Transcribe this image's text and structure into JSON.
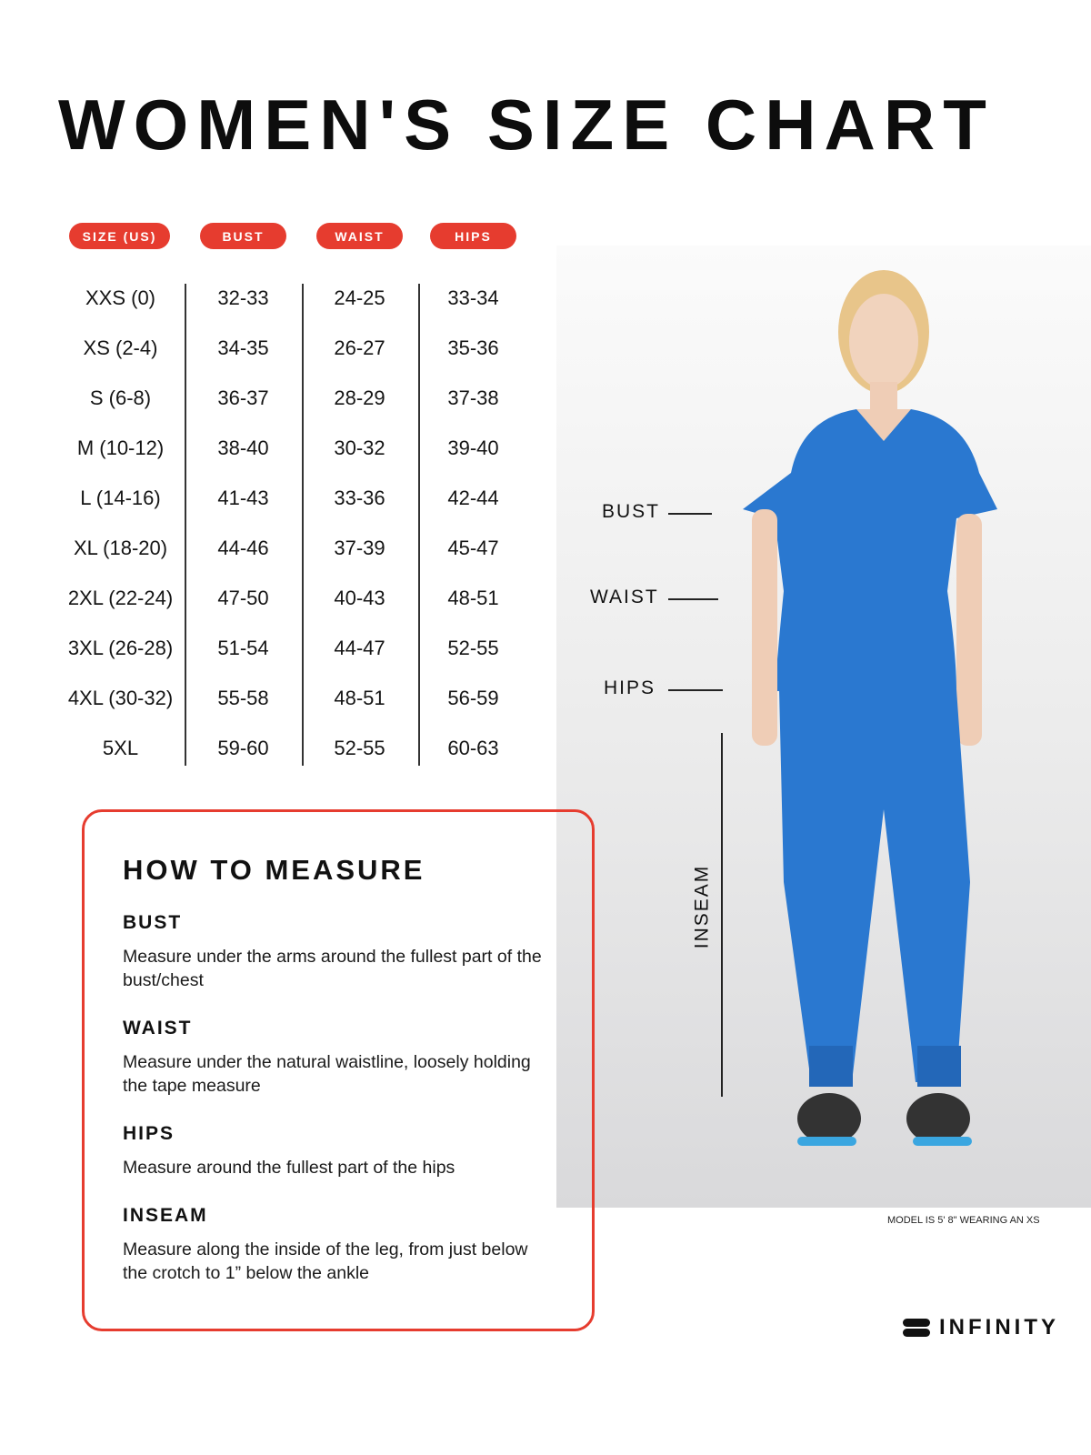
{
  "title": "WOMEN'S SIZE CHART",
  "table": {
    "headers": [
      "SIZE (US)",
      "BUST",
      "WAIST",
      "HIPS"
    ],
    "sizes": [
      "XXS (0)",
      "XS (2-4)",
      "S (6-8)",
      "M (10-12)",
      "L (14-16)",
      "XL (18-20)",
      "2XL (22-24)",
      "3XL (26-28)",
      "4XL (30-32)",
      "5XL"
    ],
    "bust": [
      "32-33",
      "34-35",
      "36-37",
      "38-40",
      "41-43",
      "44-46",
      "47-50",
      "51-54",
      "55-58",
      "59-60"
    ],
    "waist": [
      "24-25",
      "26-27",
      "28-29",
      "30-32",
      "33-36",
      "37-39",
      "40-43",
      "44-47",
      "48-51",
      "52-55"
    ],
    "hips": [
      "33-34",
      "35-36",
      "37-38",
      "39-40",
      "42-44",
      "45-47",
      "48-51",
      "52-55",
      "56-59",
      "60-63"
    ]
  },
  "figure_labels": {
    "bust": "BUST",
    "waist": "WAIST",
    "hips": "HIPS",
    "inseam": "INSEAM"
  },
  "how_to": {
    "title": "HOW TO MEASURE",
    "sections": [
      {
        "heading": "BUST",
        "text": "Measure under the arms around the fullest part of the bust/chest"
      },
      {
        "heading": "WAIST",
        "text": "Measure under the natural waistline, loosely holding the tape measure"
      },
      {
        "heading": "HIPS",
        "text": "Measure around the fullest part of the hips"
      },
      {
        "heading": "INSEAM",
        "text": "Measure along the inside of the leg, from just below the crotch to 1” below the ankle"
      }
    ]
  },
  "model_note": "MODEL IS 5' 8\" WEARING AN XS",
  "brand": "INFINITY",
  "colors": {
    "accent": "#e63c2f",
    "scrubs": "#2a78d0"
  }
}
